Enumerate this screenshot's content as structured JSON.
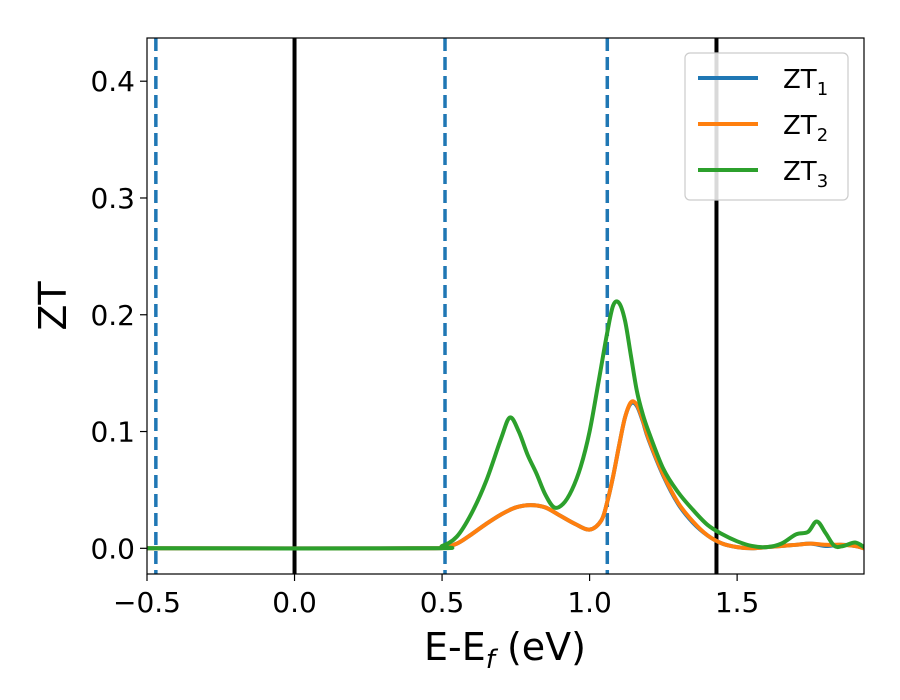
{
  "chart_data": {
    "type": "line",
    "xlabel_main": "E-E",
    "xlabel_sub": "f",
    "xlabel_unit": " (eV)",
    "ylabel": "ZT",
    "xlim": [
      -0.5,
      1.93
    ],
    "ylim": [
      -0.022,
      0.437
    ],
    "xticks": [
      {
        "value": -0.5,
        "label": "−0.5"
      },
      {
        "value": 0.0,
        "label": "0.0"
      },
      {
        "value": 0.5,
        "label": "0.5"
      },
      {
        "value": 1.0,
        "label": "1.0"
      },
      {
        "value": 1.5,
        "label": "1.5"
      }
    ],
    "yticks": [
      {
        "value": 0.0,
        "label": "0.0"
      },
      {
        "value": 0.1,
        "label": "0.1"
      },
      {
        "value": 0.2,
        "label": "0.2"
      },
      {
        "value": 0.3,
        "label": "0.3"
      },
      {
        "value": 0.4,
        "label": "0.4"
      }
    ],
    "vlines": [
      {
        "x": -0.47,
        "style": "dashed",
        "color": "#1f77b4"
      },
      {
        "x": 0.0,
        "style": "solid",
        "color": "#000000"
      },
      {
        "x": 0.51,
        "style": "dashed",
        "color": "#1f77b4"
      },
      {
        "x": 1.06,
        "style": "dashed",
        "color": "#1f77b4"
      },
      {
        "x": 1.43,
        "style": "solid",
        "color": "#000000"
      }
    ],
    "legend_position": "top-right",
    "series": [
      {
        "name": "ZT",
        "sub": "1",
        "color": "#1f77b4",
        "x": [
          -0.5,
          0.4,
          0.5,
          0.55,
          0.6,
          0.65,
          0.7,
          0.75,
          0.8,
          0.85,
          0.9,
          0.95,
          1.0,
          1.04,
          1.06,
          1.08,
          1.1,
          1.12,
          1.14,
          1.16,
          1.18,
          1.2,
          1.25,
          1.3,
          1.35,
          1.4,
          1.45,
          1.5,
          1.55,
          1.6,
          1.65,
          1.7,
          1.75,
          1.8,
          1.85,
          1.9,
          1.93
        ],
        "y": [
          0.0,
          0.0,
          0.001,
          0.004,
          0.012,
          0.021,
          0.029,
          0.035,
          0.037,
          0.035,
          0.028,
          0.021,
          0.016,
          0.024,
          0.04,
          0.062,
          0.088,
          0.112,
          0.124,
          0.122,
          0.109,
          0.093,
          0.062,
          0.038,
          0.022,
          0.011,
          0.004,
          0.001,
          0.0,
          0.001,
          0.002,
          0.003,
          0.004,
          0.002,
          0.003,
          0.002,
          0.0
        ]
      },
      {
        "name": "ZT",
        "sub": "2",
        "color": "#ff7f0e",
        "x": [
          -0.5,
          0.4,
          0.5,
          0.55,
          0.6,
          0.65,
          0.7,
          0.75,
          0.8,
          0.85,
          0.9,
          0.95,
          1.0,
          1.04,
          1.06,
          1.08,
          1.1,
          1.12,
          1.14,
          1.16,
          1.18,
          1.2,
          1.25,
          1.3,
          1.35,
          1.4,
          1.45,
          1.5,
          1.55,
          1.6,
          1.65,
          1.7,
          1.75,
          1.8,
          1.85,
          1.9,
          1.93
        ],
        "y": [
          0.0,
          0.0,
          0.001,
          0.004,
          0.012,
          0.021,
          0.029,
          0.035,
          0.037,
          0.035,
          0.028,
          0.021,
          0.016,
          0.024,
          0.04,
          0.062,
          0.088,
          0.112,
          0.125,
          0.123,
          0.11,
          0.094,
          0.063,
          0.039,
          0.023,
          0.011,
          0.004,
          0.001,
          0.0,
          0.001,
          0.002,
          0.003,
          0.004,
          0.003,
          0.003,
          0.002,
          0.0
        ]
      },
      {
        "name": "ZT",
        "sub": "3",
        "color": "#2ca02c",
        "x": [
          -0.5,
          0.45,
          0.5,
          0.55,
          0.6,
          0.65,
          0.7,
          0.73,
          0.76,
          0.79,
          0.82,
          0.85,
          0.88,
          0.91,
          0.94,
          0.97,
          1.0,
          1.03,
          1.06,
          1.08,
          1.1,
          1.12,
          1.14,
          1.16,
          1.18,
          1.2,
          1.25,
          1.3,
          1.35,
          1.4,
          1.45,
          1.5,
          1.55,
          1.6,
          1.65,
          1.7,
          1.74,
          1.77,
          1.8,
          1.83,
          1.86,
          1.9,
          1.93
        ],
        "y": [
          0.0,
          0.0,
          0.002,
          0.01,
          0.03,
          0.058,
          0.094,
          0.112,
          0.1,
          0.08,
          0.064,
          0.046,
          0.035,
          0.038,
          0.05,
          0.07,
          0.1,
          0.142,
          0.185,
          0.208,
          0.21,
          0.195,
          0.165,
          0.135,
          0.115,
          0.1,
          0.068,
          0.048,
          0.033,
          0.02,
          0.012,
          0.006,
          0.002,
          0.001,
          0.004,
          0.012,
          0.014,
          0.023,
          0.013,
          0.002,
          0.002,
          0.005,
          0.001
        ]
      }
    ]
  }
}
